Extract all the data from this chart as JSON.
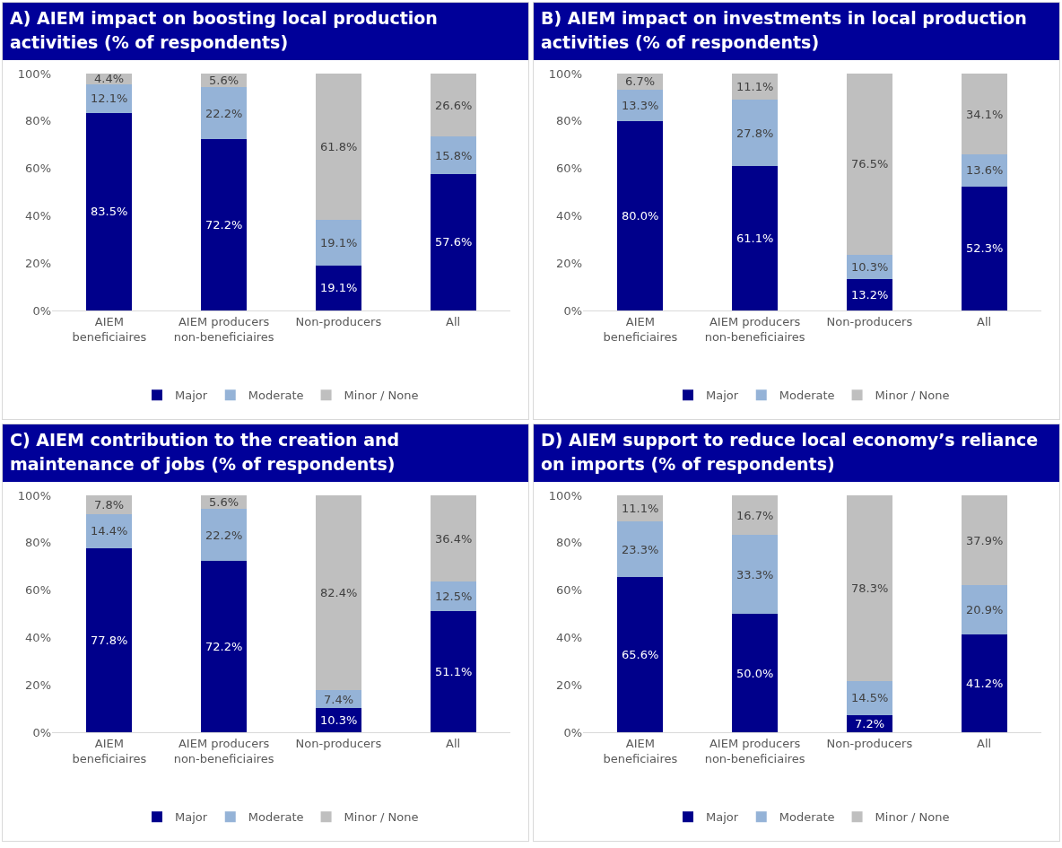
{
  "chart_data": [
    {
      "type": "bar",
      "stacked": true,
      "title": "A) AIEM impact on boosting local production activities (% of respondents)",
      "categories": [
        "AIEM beneficiaires",
        "AIEM producers non-beneficiaires",
        "Non-producers",
        "All"
      ],
      "ylim": [
        0,
        100
      ],
      "yticks": [
        {
          "value": 0,
          "label": "0%"
        },
        {
          "value": 20,
          "label": "20%"
        },
        {
          "value": 40,
          "label": "40%"
        },
        {
          "value": 60,
          "label": "60%"
        },
        {
          "value": 80,
          "label": "80%"
        },
        {
          "value": 100,
          "label": "100%"
        }
      ],
      "grid": false,
      "legend": "bottom",
      "series": [
        {
          "name": "Major",
          "color": "#00008b",
          "values": [
            83.5,
            72.2,
            19.1,
            57.6
          ],
          "value_labels": [
            "83.5%",
            "72.2%",
            "19.1%",
            "57.6%"
          ]
        },
        {
          "name": "Moderate",
          "color": "#95b3d7",
          "values": [
            12.1,
            22.2,
            19.1,
            15.8
          ],
          "value_labels": [
            "12.1%",
            "22.2%",
            "19.1%",
            "15.8%"
          ]
        },
        {
          "name": "Minor / None",
          "color": "#bfbfbf",
          "values": [
            4.4,
            5.6,
            61.8,
            26.6
          ],
          "value_labels": [
            "4.4%",
            "5.6%",
            "61.8%",
            "26.6%"
          ]
        }
      ]
    },
    {
      "type": "bar",
      "stacked": true,
      "title": "B) AIEM impact on investments in local production activities (% of respondents)",
      "categories": [
        "AIEM beneficiaires",
        "AIEM producers non-beneficiaires",
        "Non-producers",
        "All"
      ],
      "ylim": [
        0,
        100
      ],
      "yticks": [
        {
          "value": 0,
          "label": "0%"
        },
        {
          "value": 20,
          "label": "20%"
        },
        {
          "value": 40,
          "label": "40%"
        },
        {
          "value": 60,
          "label": "60%"
        },
        {
          "value": 80,
          "label": "80%"
        },
        {
          "value": 100,
          "label": "100%"
        }
      ],
      "grid": false,
      "legend": "bottom",
      "series": [
        {
          "name": "Major",
          "color": "#00008b",
          "values": [
            80.0,
            61.1,
            13.2,
            52.3
          ],
          "value_labels": [
            "80.0%",
            "61.1%",
            "13.2%",
            "52.3%"
          ]
        },
        {
          "name": "Moderate",
          "color": "#95b3d7",
          "values": [
            13.3,
            27.8,
            10.3,
            13.6
          ],
          "value_labels": [
            "13.3%",
            "27.8%",
            "10.3%",
            "13.6%"
          ]
        },
        {
          "name": "Minor / None",
          "color": "#bfbfbf",
          "values": [
            6.7,
            11.1,
            76.5,
            34.1
          ],
          "value_labels": [
            "6.7%",
            "11.1%",
            "76.5%",
            "34.1%"
          ]
        }
      ]
    },
    {
      "type": "bar",
      "stacked": true,
      "title": "C) AIEM contribution to the creation and maintenance of jobs (% of respondents)",
      "categories": [
        "AIEM beneficiaires",
        "AIEM producers non-beneficiaires",
        "Non-producers",
        "All"
      ],
      "ylim": [
        0,
        100
      ],
      "yticks": [
        {
          "value": 0,
          "label": "0%"
        },
        {
          "value": 20,
          "label": "20%"
        },
        {
          "value": 40,
          "label": "40%"
        },
        {
          "value": 60,
          "label": "60%"
        },
        {
          "value": 80,
          "label": "80%"
        },
        {
          "value": 100,
          "label": "100%"
        }
      ],
      "grid": false,
      "legend": "bottom",
      "series": [
        {
          "name": "Major",
          "color": "#00008b",
          "values": [
            77.8,
            72.2,
            10.3,
            51.1
          ],
          "value_labels": [
            "77.8%",
            "72.2%",
            "10.3%",
            "51.1%"
          ]
        },
        {
          "name": "Moderate",
          "color": "#95b3d7",
          "values": [
            14.4,
            22.2,
            7.4,
            12.5
          ],
          "value_labels": [
            "14.4%",
            "22.2%",
            "7.4%",
            "12.5%"
          ]
        },
        {
          "name": "Minor / None",
          "color": "#bfbfbf",
          "values": [
            7.8,
            5.6,
            82.4,
            36.4
          ],
          "value_labels": [
            "7.8%",
            "5.6%",
            "82.4%",
            "36.4%"
          ]
        }
      ]
    },
    {
      "type": "bar",
      "stacked": true,
      "title": "D) AIEM support to reduce local economy’s reliance on imports (% of respondents)",
      "categories": [
        "AIEM beneficiaires",
        "AIEM producers non-beneficiaires",
        "Non-producers",
        "All"
      ],
      "ylim": [
        0,
        100
      ],
      "yticks": [
        {
          "value": 0,
          "label": "0%"
        },
        {
          "value": 20,
          "label": "20%"
        },
        {
          "value": 40,
          "label": "40%"
        },
        {
          "value": 60,
          "label": "60%"
        },
        {
          "value": 80,
          "label": "80%"
        },
        {
          "value": 100,
          "label": "100%"
        }
      ],
      "grid": false,
      "legend": "bottom",
      "series": [
        {
          "name": "Major",
          "color": "#00008b",
          "values": [
            65.6,
            50.0,
            7.2,
            41.2
          ],
          "value_labels": [
            "65.6%",
            "50.0%",
            "7.2%",
            "41.2%"
          ]
        },
        {
          "name": "Moderate",
          "color": "#95b3d7",
          "values": [
            23.3,
            33.3,
            14.5,
            20.9
          ],
          "value_labels": [
            "23.3%",
            "33.3%",
            "14.5%",
            "20.9%"
          ]
        },
        {
          "name": "Minor / None",
          "color": "#bfbfbf",
          "values": [
            11.1,
            16.7,
            78.3,
            37.9
          ],
          "value_labels": [
            "11.1%",
            "16.7%",
            "78.3%",
            "37.9%"
          ]
        }
      ]
    }
  ]
}
